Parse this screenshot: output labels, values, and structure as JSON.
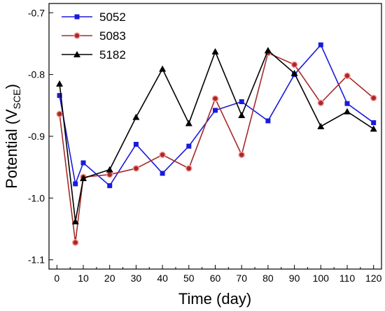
{
  "chart_data": {
    "type": "line",
    "xlabel": "Time (day)",
    "ylabel": {
      "main": "Potential (V",
      "sub": "SCE",
      "close": ")"
    },
    "xlim": [
      -3,
      123
    ],
    "ylim": [
      -1.115,
      -0.685
    ],
    "xticks": [
      0,
      10,
      20,
      30,
      40,
      50,
      60,
      70,
      80,
      90,
      100,
      110,
      120
    ],
    "xtick_labels": [
      "0",
      "10",
      "20",
      "30",
      "40",
      "50",
      "60",
      "70",
      "80",
      "90",
      "100",
      "110",
      "120"
    ],
    "yticks": [
      -1.1,
      -1.0,
      -0.9,
      -0.8,
      -0.7
    ],
    "ytick_labels": [
      "-1.1",
      "-1.0",
      "-0.9",
      "-0.8",
      "-0.7"
    ],
    "grid": false,
    "legend_position": "top-left",
    "x": [
      1,
      7,
      10,
      20,
      30,
      40,
      50,
      60,
      70,
      80,
      90,
      100,
      110,
      120
    ],
    "series": [
      {
        "name": "5052",
        "color": "#1a1adc",
        "marker": "square",
        "values": [
          -0.834,
          -0.977,
          -0.943,
          -0.98,
          -0.913,
          -0.96,
          -0.916,
          -0.858,
          -0.844,
          -0.875,
          -0.8,
          -0.752,
          -0.847,
          -0.878
        ]
      },
      {
        "name": "5083",
        "color": "#a52a2a",
        "marker": "circle",
        "values": [
          -0.864,
          -1.072,
          -0.966,
          -0.962,
          -0.952,
          -0.93,
          -0.952,
          -0.839,
          -0.93,
          -0.765,
          -0.784,
          -0.846,
          -0.802,
          -0.838
        ]
      },
      {
        "name": "5182",
        "color": "#000000",
        "marker": "triangle",
        "values": [
          -0.815,
          -1.038,
          -0.968,
          -0.954,
          -0.869,
          -0.791,
          -0.879,
          -0.763,
          -0.866,
          -0.761,
          -0.798,
          -0.884,
          -0.86,
          -0.888
        ]
      }
    ]
  }
}
